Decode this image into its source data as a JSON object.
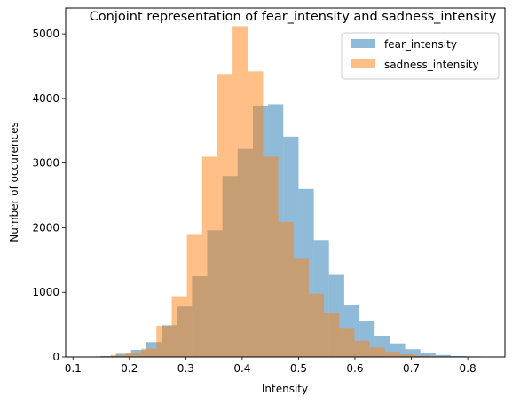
{
  "chart_data": {
    "type": "bar",
    "subtype": "overlaid-histogram",
    "title": "Conjoint representation of fear_intensity and sadness_intensity",
    "xlabel": "Intensity",
    "ylabel": "Number of occurences",
    "xlim": [
      0.087,
      0.866
    ],
    "ylim": [
      0,
      5400
    ],
    "xticks": [
      0.1,
      0.2,
      0.3,
      0.4,
      0.5,
      0.6,
      0.7,
      0.8
    ],
    "xtick_labels": [
      "0.1",
      "0.2",
      "0.3",
      "0.4",
      "0.5",
      "0.6",
      "0.7",
      "0.8"
    ],
    "yticks": [
      0,
      1000,
      2000,
      3000,
      4000,
      5000
    ],
    "ytick_labels": [
      "0",
      "1000",
      "2000",
      "3000",
      "4000",
      "5000"
    ],
    "grid": false,
    "legend_position": "top-right",
    "series": [
      {
        "name": "fear_intensity",
        "color": "#1f77b4",
        "alpha": 0.5,
        "bins": [
          [
            0.122,
            0.149,
            5
          ],
          [
            0.149,
            0.176,
            15
          ],
          [
            0.176,
            0.203,
            50
          ],
          [
            0.203,
            0.23,
            110
          ],
          [
            0.23,
            0.257,
            230
          ],
          [
            0.257,
            0.284,
            490
          ],
          [
            0.284,
            0.311,
            780
          ],
          [
            0.311,
            0.338,
            1250
          ],
          [
            0.338,
            0.365,
            1960
          ],
          [
            0.365,
            0.392,
            2800
          ],
          [
            0.392,
            0.419,
            3220
          ],
          [
            0.419,
            0.446,
            3890
          ],
          [
            0.446,
            0.473,
            3910
          ],
          [
            0.473,
            0.5,
            3410
          ],
          [
            0.5,
            0.527,
            2600
          ],
          [
            0.527,
            0.554,
            1810
          ],
          [
            0.554,
            0.581,
            1270
          ],
          [
            0.581,
            0.608,
            800
          ],
          [
            0.608,
            0.635,
            550
          ],
          [
            0.635,
            0.662,
            330
          ],
          [
            0.662,
            0.689,
            210
          ],
          [
            0.689,
            0.716,
            120
          ],
          [
            0.716,
            0.743,
            60
          ],
          [
            0.743,
            0.77,
            30
          ],
          [
            0.77,
            0.797,
            15
          ],
          [
            0.797,
            0.824,
            8
          ],
          [
            0.824,
            0.851,
            5
          ]
        ]
      },
      {
        "name": "sadness_intensity",
        "color": "#ff7f0e",
        "alpha": 0.5,
        "bins": [
          [
            0.14,
            0.167,
            10
          ],
          [
            0.167,
            0.194,
            30
          ],
          [
            0.194,
            0.221,
            60
          ],
          [
            0.221,
            0.248,
            130
          ],
          [
            0.248,
            0.275,
            480
          ],
          [
            0.275,
            0.302,
            940
          ],
          [
            0.302,
            0.329,
            1890
          ],
          [
            0.329,
            0.356,
            3100
          ],
          [
            0.356,
            0.383,
            4380
          ],
          [
            0.383,
            0.41,
            5120
          ],
          [
            0.41,
            0.437,
            4420
          ],
          [
            0.437,
            0.464,
            3100
          ],
          [
            0.464,
            0.491,
            2090
          ],
          [
            0.491,
            0.518,
            1520
          ],
          [
            0.518,
            0.545,
            980
          ],
          [
            0.545,
            0.572,
            680
          ],
          [
            0.572,
            0.599,
            450
          ],
          [
            0.599,
            0.626,
            250
          ],
          [
            0.626,
            0.653,
            150
          ],
          [
            0.653,
            0.68,
            80
          ],
          [
            0.68,
            0.707,
            40
          ],
          [
            0.707,
            0.734,
            20
          ],
          [
            0.734,
            0.761,
            10
          ]
        ]
      }
    ]
  }
}
